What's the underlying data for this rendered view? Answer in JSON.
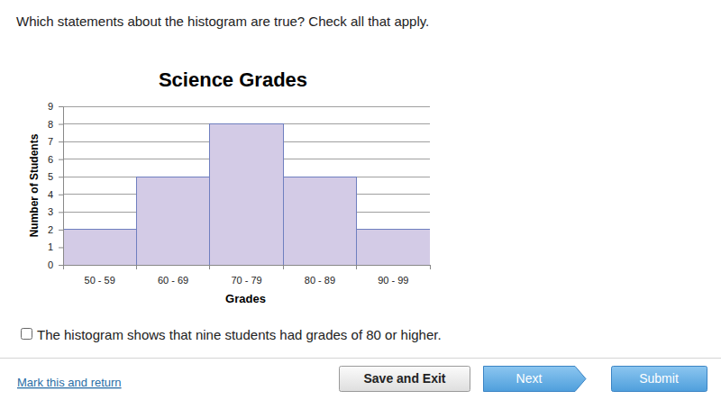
{
  "question": "Which statements about the histogram are true? Check all that apply.",
  "chart_data": {
    "type": "bar",
    "title": "Science Grades",
    "x_label": "Grades",
    "y_label": "Number of Students",
    "categories": [
      "50 - 59",
      "60 - 69",
      "70 - 79",
      "80 - 89",
      "90 - 99"
    ],
    "values": [
      2,
      5,
      8,
      5,
      2
    ],
    "color": "#d3cbe6",
    "ylim": [
      0,
      9
    ],
    "yticks": [
      0,
      1,
      2,
      3,
      4,
      5,
      6,
      7,
      8,
      9
    ],
    "grid": true
  },
  "options": [
    "The histogram shows that nine students had grades of 80 or higher."
  ],
  "link": "Mark this and return",
  "buttons": [
    "Save and Exit",
    "Next",
    "Submit"
  ]
}
